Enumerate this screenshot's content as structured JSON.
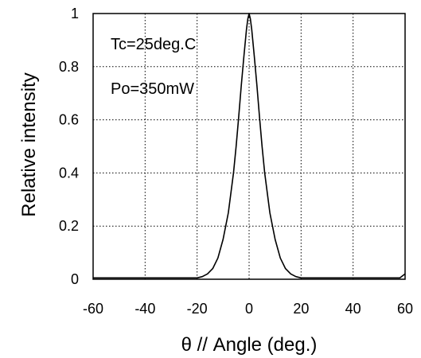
{
  "chart_data": {
    "type": "line",
    "title": "",
    "xlabel": "θ //  Angle (deg.)",
    "ylabel": "Relative intensity",
    "xlim": [
      -60,
      60
    ],
    "ylim": [
      0,
      1
    ],
    "xticks": [
      -60,
      -40,
      -20,
      0,
      20,
      40,
      60
    ],
    "yticks": [
      0,
      0.2,
      0.4,
      0.6,
      0.8,
      1
    ],
    "ytick_labels": [
      "0",
      "0.2",
      "0.4",
      "0.6",
      "0.8",
      "1"
    ],
    "grid": true,
    "grid_style": "dotted",
    "annotations": [
      "Tc=25deg.C",
      "Po=350mW"
    ],
    "series": [
      {
        "color": "#000000",
        "x": [
          -60,
          -40,
          -25,
          -20,
          -18,
          -16,
          -14,
          -12,
          -10,
          -8,
          -6,
          -5,
          -4,
          -3,
          -2,
          -1,
          -0.5,
          0,
          0.5,
          1,
          2,
          3,
          4,
          5,
          6,
          8,
          10,
          12,
          14,
          16,
          18,
          20,
          25,
          40,
          58,
          60
        ],
        "y": [
          0.005,
          0.005,
          0.005,
          0.005,
          0.01,
          0.02,
          0.04,
          0.08,
          0.15,
          0.25,
          0.4,
          0.5,
          0.61,
          0.73,
          0.84,
          0.94,
          0.98,
          1.0,
          0.98,
          0.94,
          0.84,
          0.73,
          0.61,
          0.5,
          0.4,
          0.25,
          0.15,
          0.08,
          0.04,
          0.02,
          0.01,
          0.005,
          0.005,
          0.005,
          0.005,
          0.02
        ]
      }
    ]
  }
}
